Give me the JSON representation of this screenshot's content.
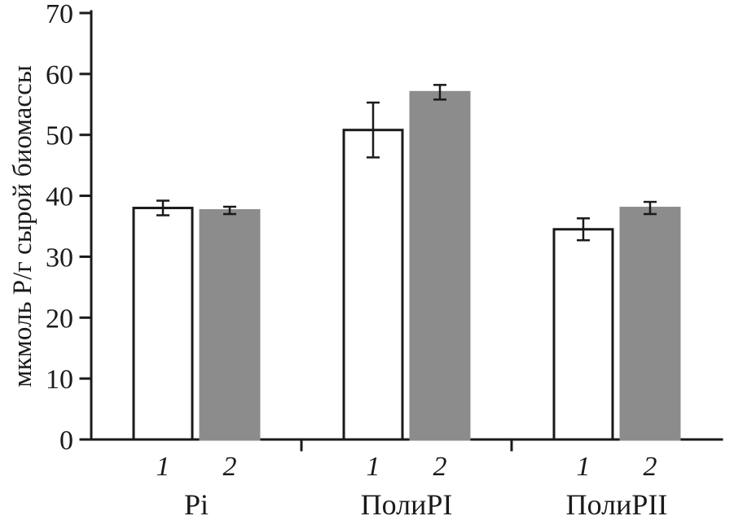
{
  "chart_data": {
    "type": "bar",
    "title": "",
    "xlabel": "",
    "ylabel": "мкмоль Р/г сырой биомассы",
    "ylim": [
      0,
      70
    ],
    "yticks": [
      0,
      10,
      20,
      30,
      40,
      50,
      60,
      70
    ],
    "categories": [
      "Pi",
      "ПолиPI",
      "ПолиPII"
    ],
    "bar_labels": [
      "1",
      "2"
    ],
    "series": [
      {
        "name": "1",
        "fill": "#ffffff",
        "border": "#1a1a1a",
        "values": [
          38.0,
          50.8,
          34.5
        ],
        "errors": [
          1.2,
          4.5,
          1.8
        ]
      },
      {
        "name": "2",
        "fill": "#8c8c8c",
        "border": "#8c8c8c",
        "values": [
          37.6,
          57.0,
          38.0
        ],
        "errors": [
          0.6,
          1.2,
          1.0
        ]
      }
    ],
    "grid": false,
    "legend": "none"
  },
  "colors": {
    "axis": "#1a1a1a",
    "error_bar": "#1a1a1a",
    "text": "#1a1a1a",
    "background": "#ffffff"
  }
}
